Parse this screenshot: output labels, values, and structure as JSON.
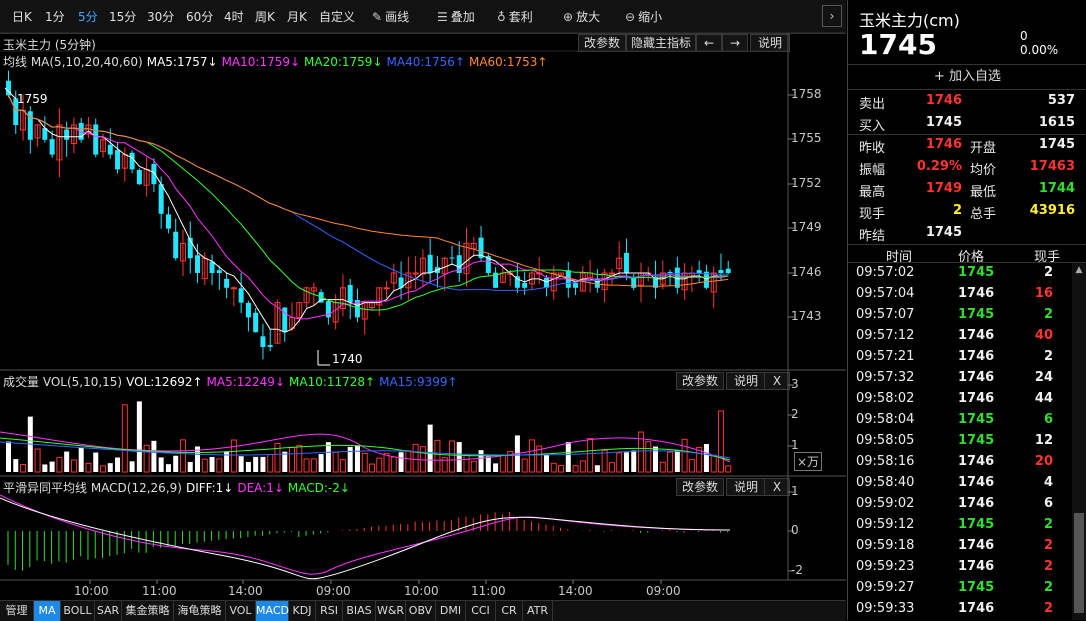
{
  "toolbar": {
    "periods": [
      "日K",
      "1分",
      "5分",
      "15分",
      "30分",
      "60分",
      "4时",
      "周K",
      "月K",
      "自定义"
    ],
    "active_period": "5分",
    "tools": [
      {
        "icon": "pencil-icon",
        "glyph": "✎",
        "label": "画线"
      },
      {
        "icon": "layers-icon",
        "glyph": "☰",
        "label": "叠加"
      },
      {
        "icon": "money-bag-icon",
        "glyph": "♁",
        "label": "套利"
      },
      {
        "icon": "zoom-in-icon",
        "glyph": "⊕",
        "label": "放大"
      },
      {
        "icon": "zoom-out-icon",
        "glyph": "⊖",
        "label": "缩小"
      }
    ],
    "collapse_glyph": "›"
  },
  "main_chart": {
    "title": "玉米主力 (5分钟)",
    "buttons": [
      "改参数",
      "隐藏主指标",
      "←",
      "→",
      "说明"
    ],
    "ma_label": "均线 MA(5,10,20,40,60)",
    "ma": [
      {
        "text": "MA5:1757↓",
        "color": "#ffffff"
      },
      {
        "text": "MA10:1759↓",
        "color": "#ff33ff"
      },
      {
        "text": "MA20:1759↓",
        "color": "#33ff33"
      },
      {
        "text": "MA40:1756↑",
        "color": "#3366ff"
      },
      {
        "text": "MA60:1753↑",
        "color": "#ff8833"
      }
    ],
    "y_ticks": [
      "1758",
      "1755",
      "1752",
      "1749",
      "1746",
      "1743"
    ],
    "high_label": "1759",
    "low_label": "1740"
  },
  "vol_panel": {
    "title": "成交量 VOL(5,10,15)",
    "values": [
      {
        "text": "VOL:12692↑",
        "color": "#ffffff"
      },
      {
        "text": "MA5:12249↓",
        "color": "#ff33ff"
      },
      {
        "text": "MA10:11728↑",
        "color": "#33ff33"
      },
      {
        "text": "MA15:9399↑",
        "color": "#3366ff"
      }
    ],
    "buttons": [
      "改参数",
      "说明",
      "X"
    ],
    "y_ticks": [
      "3",
      "2",
      "1"
    ],
    "unit": "×万"
  },
  "macd_panel": {
    "title": "平滑异同平均线 MACD(12,26,9)",
    "values": [
      {
        "text": "DIFF:1↓",
        "color": "#ffffff"
      },
      {
        "text": "DEA:1↓",
        "color": "#ff33ff"
      },
      {
        "text": "MACD:-2↓",
        "color": "#33ff33"
      }
    ],
    "buttons": [
      "改参数",
      "说明",
      "X"
    ],
    "y_ticks": [
      "1",
      "0",
      "-2"
    ]
  },
  "x_axis": [
    "10:00",
    "11:00",
    "14:00",
    "09:00",
    "10:00",
    "11:00",
    "14:00",
    "09:00"
  ],
  "bottom_tabs": [
    "管理",
    "MA",
    "BOLL",
    "SAR",
    "集金策略",
    "海龟策略",
    "VOL",
    "MACD",
    "KDJ",
    "RSI",
    "BIAS",
    "W&R",
    "OBV",
    "DMI",
    "CCI",
    "CR",
    "ATR"
  ],
  "bottom_active": [
    "MA",
    "MACD"
  ],
  "quote": {
    "name": "玉米主力(cm)",
    "price": "1745",
    "change": "0",
    "change_pct": "0.00%",
    "add_watch": "加入自选",
    "sell_label": "卖出",
    "sell_price": "1746",
    "sell_vol": "537",
    "buy_label": "买入",
    "buy_price": "1745",
    "buy_vol": "1615",
    "stats": [
      {
        "l1": "昨收",
        "v1": "1746",
        "c1": "red",
        "l2": "开盘",
        "v2": "1745",
        "c2": "white"
      },
      {
        "l1": "振幅",
        "v1": "0.29%",
        "c1": "red",
        "l2": "均价",
        "v2": "17463",
        "c2": "red"
      },
      {
        "l1": "最高",
        "v1": "1749",
        "c1": "red",
        "l2": "最低",
        "v2": "1744",
        "c2": "green"
      },
      {
        "l1": "现手",
        "v1": "2",
        "c1": "yellow",
        "l2": "总手",
        "v2": "43916",
        "c2": "yellow"
      },
      {
        "l1": "昨结",
        "v1": "1745",
        "c1": "white",
        "l2": "",
        "v2": "",
        "c2": "white"
      }
    ],
    "tick_headers": [
      "时间",
      "价格",
      "现手"
    ],
    "ticks": [
      {
        "t": "09:57:02",
        "p": "1745",
        "pc": "green",
        "v": "2",
        "vc": "white"
      },
      {
        "t": "09:57:04",
        "p": "1746",
        "pc": "white",
        "v": "16",
        "vc": "red"
      },
      {
        "t": "09:57:07",
        "p": "1745",
        "pc": "green",
        "v": "2",
        "vc": "green"
      },
      {
        "t": "09:57:12",
        "p": "1746",
        "pc": "white",
        "v": "40",
        "vc": "red"
      },
      {
        "t": "09:57:21",
        "p": "1746",
        "pc": "white",
        "v": "2",
        "vc": "white"
      },
      {
        "t": "09:57:32",
        "p": "1746",
        "pc": "white",
        "v": "24",
        "vc": "white"
      },
      {
        "t": "09:58:02",
        "p": "1746",
        "pc": "white",
        "v": "44",
        "vc": "white"
      },
      {
        "t": "09:58:04",
        "p": "1745",
        "pc": "green",
        "v": "6",
        "vc": "green"
      },
      {
        "t": "09:58:05",
        "p": "1745",
        "pc": "green",
        "v": "12",
        "vc": "white"
      },
      {
        "t": "09:58:16",
        "p": "1746",
        "pc": "white",
        "v": "20",
        "vc": "red"
      },
      {
        "t": "09:58:40",
        "p": "1746",
        "pc": "white",
        "v": "4",
        "vc": "white"
      },
      {
        "t": "09:59:02",
        "p": "1746",
        "pc": "white",
        "v": "6",
        "vc": "white"
      },
      {
        "t": "09:59:12",
        "p": "1745",
        "pc": "green",
        "v": "2",
        "vc": "green"
      },
      {
        "t": "09:59:18",
        "p": "1746",
        "pc": "white",
        "v": "2",
        "vc": "red"
      },
      {
        "t": "09:59:23",
        "p": "1746",
        "pc": "white",
        "v": "2",
        "vc": "red"
      },
      {
        "t": "09:59:27",
        "p": "1745",
        "pc": "green",
        "v": "2",
        "vc": "green"
      },
      {
        "t": "09:59:33",
        "p": "1746",
        "pc": "white",
        "v": "2",
        "vc": "red"
      }
    ]
  },
  "colors": {
    "up": "#ff3333",
    "down": "#22e5ff",
    "accent": "#1e88e5"
  }
}
